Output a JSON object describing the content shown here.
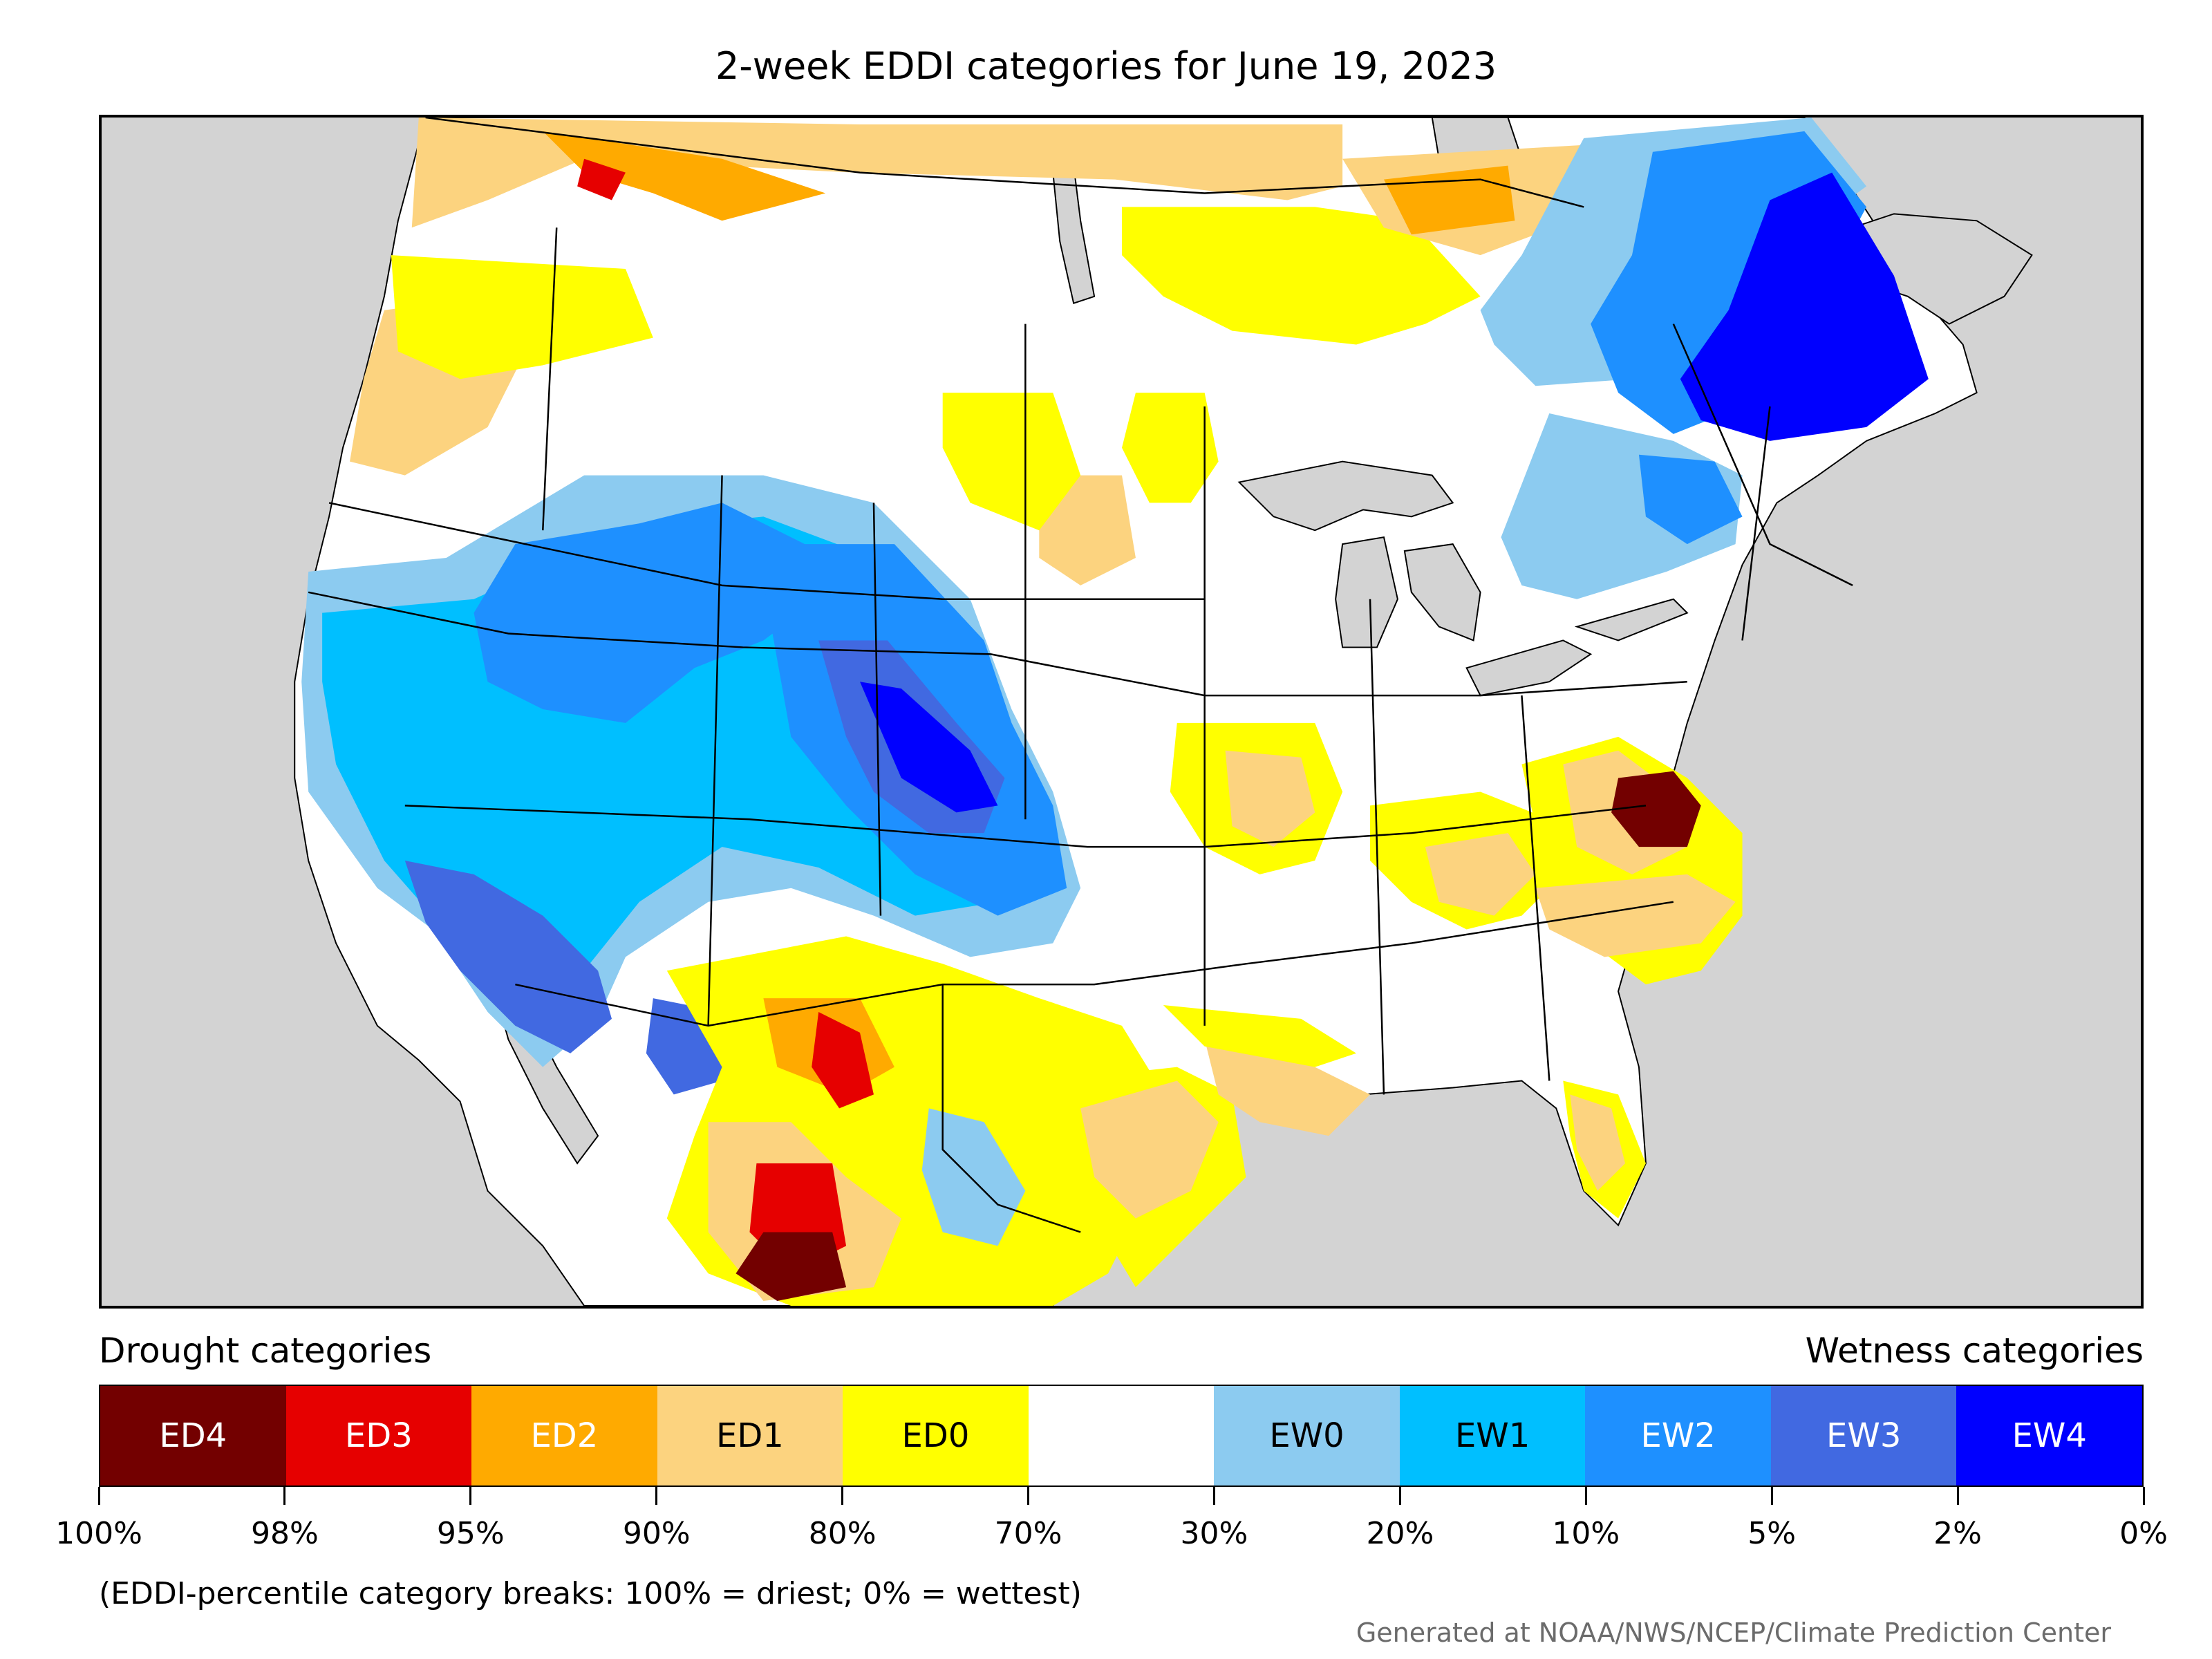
{
  "title": "2-week EDDI categories for June 19, 2023",
  "legend": {
    "drought_caption": "Drought categories",
    "wetness_caption": "Wetness categories",
    "categories": [
      {
        "label": "ED4",
        "color": "#730000",
        "text_color": "#ffffff"
      },
      {
        "label": "ED3",
        "color": "#e60000",
        "text_color": "#ffffff"
      },
      {
        "label": "ED2",
        "color": "#ffaa00",
        "text_color": "#ffffff"
      },
      {
        "label": "ED1",
        "color": "#fcd37f",
        "text_color": "#000000"
      },
      {
        "label": "ED0",
        "color": "#ffff00",
        "text_color": "#000000"
      },
      {
        "label": "",
        "color": "#ffffff",
        "text_color": "#000000"
      },
      {
        "label": "EW0",
        "color": "#8ccbf0",
        "text_color": "#000000"
      },
      {
        "label": "EW1",
        "color": "#00bfff",
        "text_color": "#000000"
      },
      {
        "label": "EW2",
        "color": "#1e90ff",
        "text_color": "#ffffff"
      },
      {
        "label": "EW3",
        "color": "#4169e1",
        "text_color": "#ffffff"
      },
      {
        "label": "EW4",
        "color": "#0000ff",
        "text_color": "#ffffff"
      }
    ],
    "tick_labels": [
      "100%",
      "98%",
      "95%",
      "90%",
      "80%",
      "70%",
      "30%",
      "20%",
      "10%",
      "5%",
      "2%",
      "0%"
    ]
  },
  "breaks_note": "(EDDI-percentile category breaks: 100% = driest; 0% = wettest)",
  "credit": "Generated at NOAA/NWS/NCEP/Climate Prediction Center",
  "map": {
    "ocean_color": "#d3d3d3",
    "land_color": "#ffffff"
  }
}
